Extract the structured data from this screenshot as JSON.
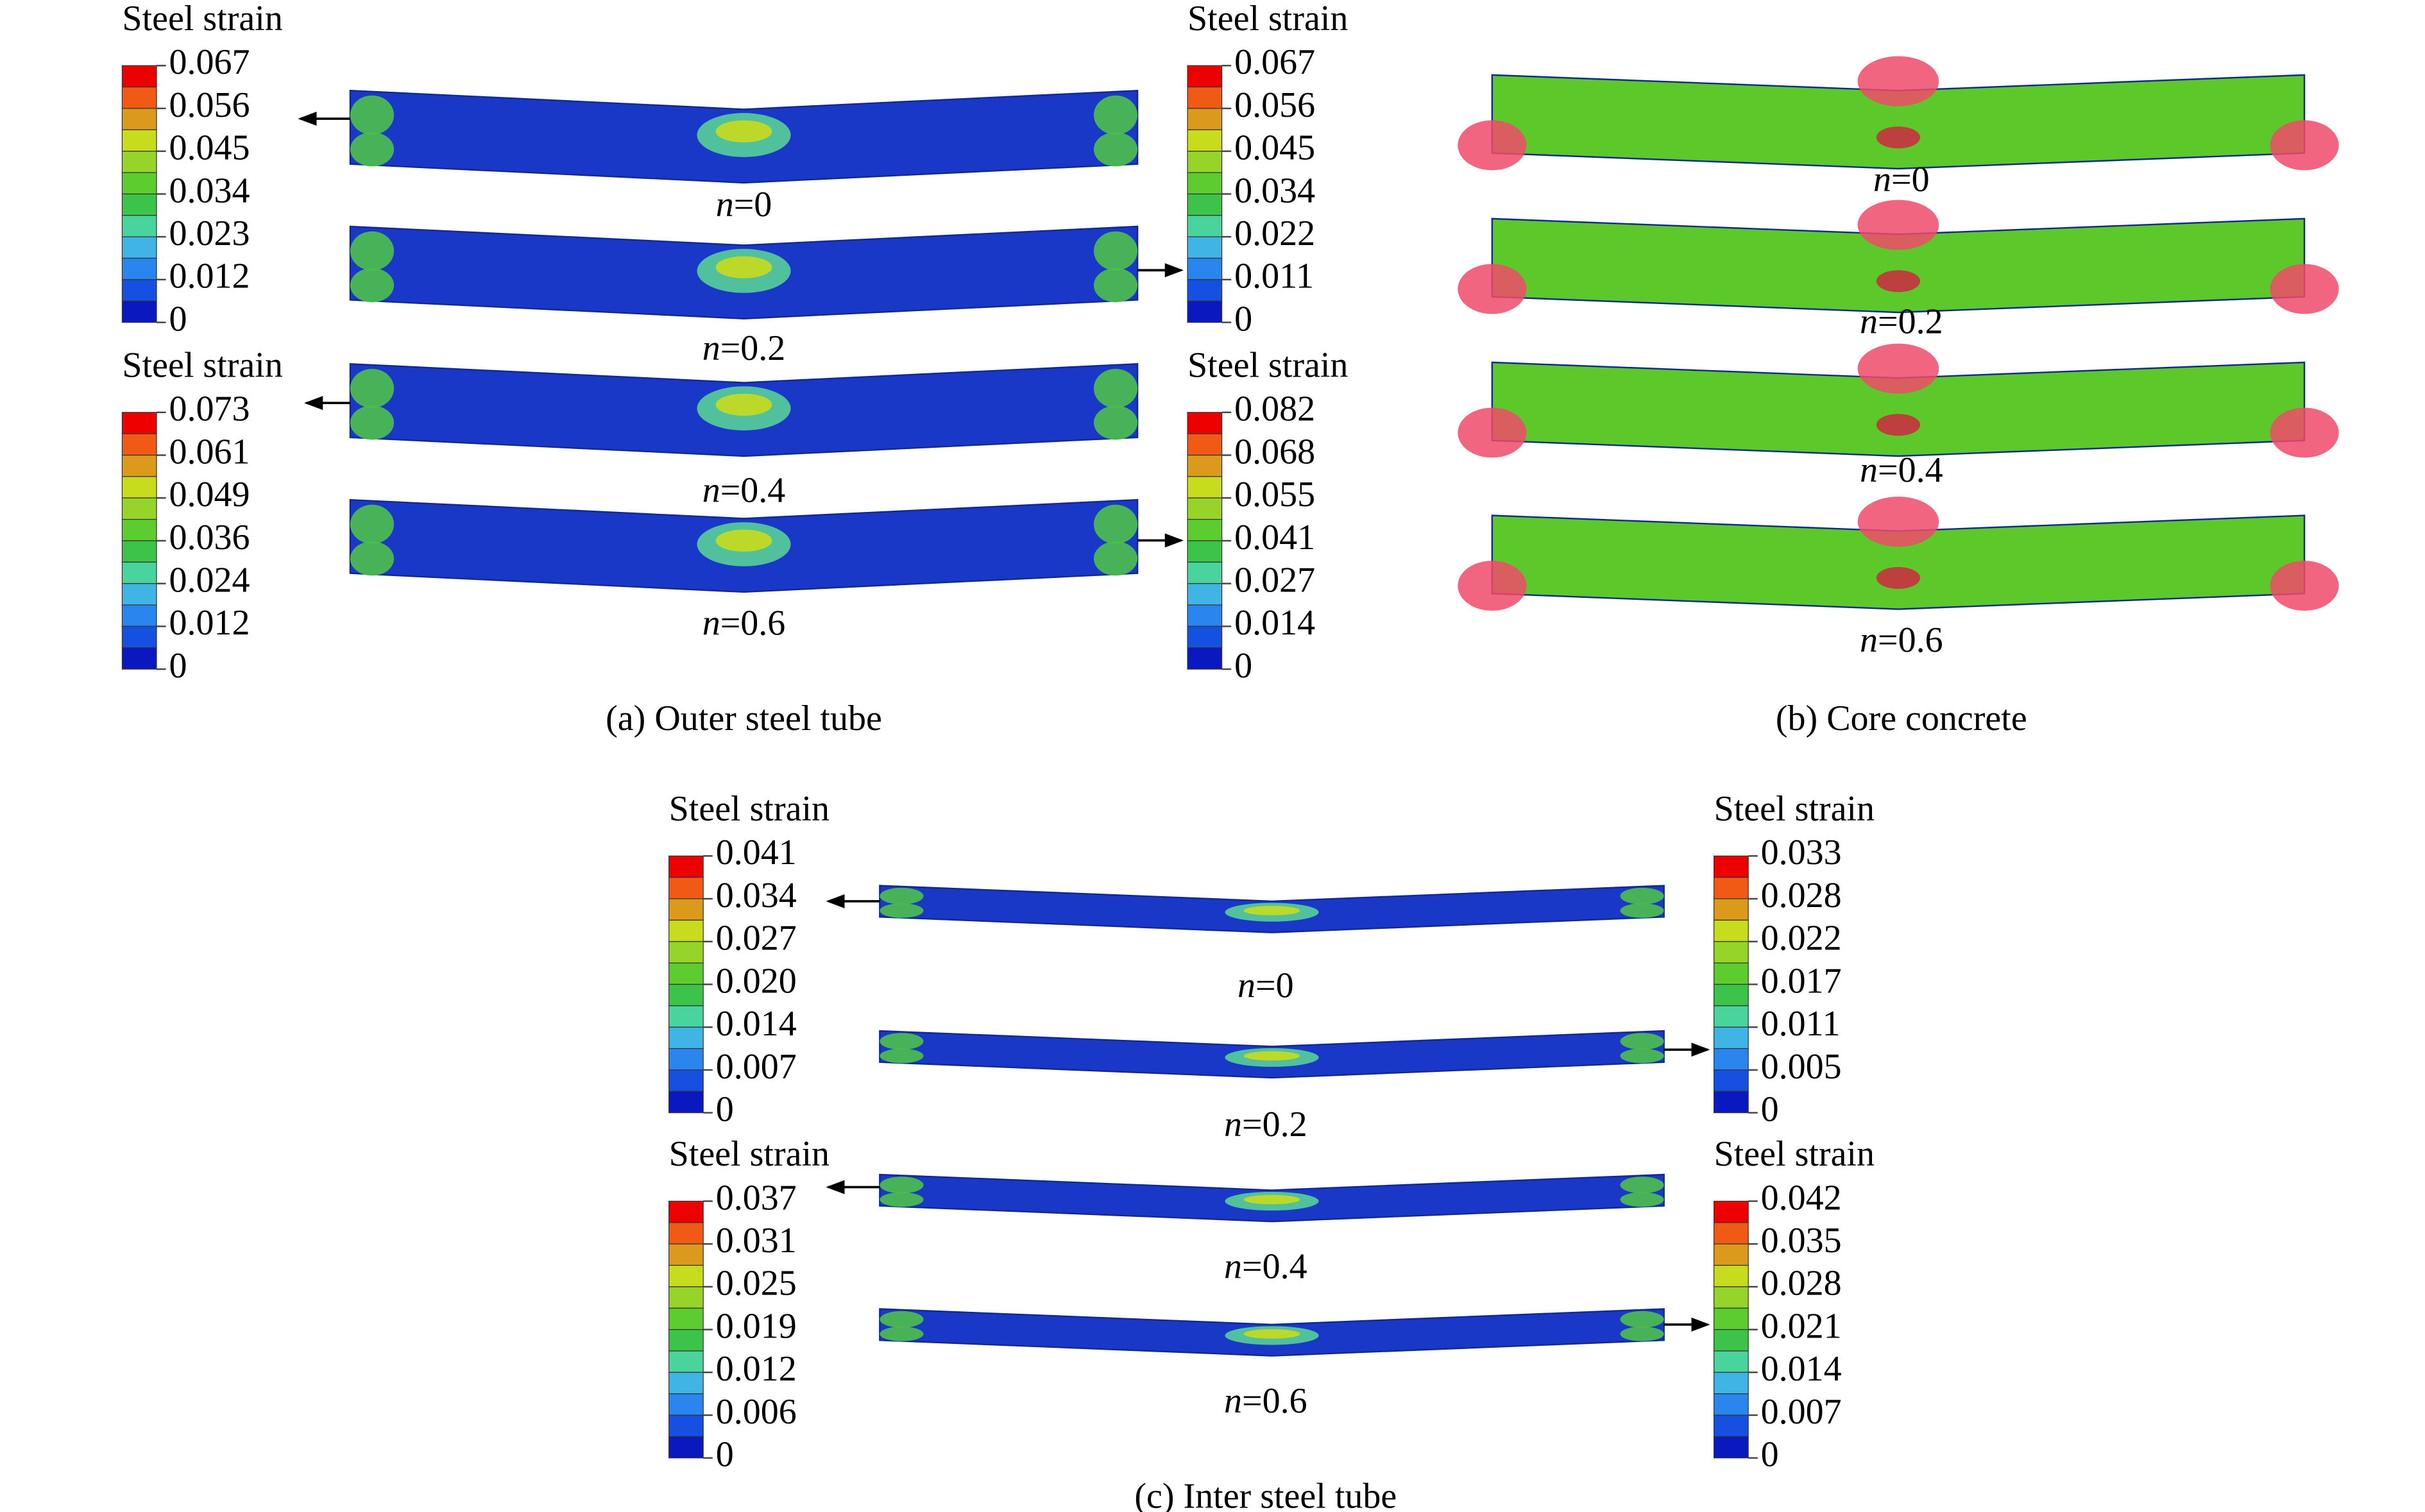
{
  "panels": [
    {
      "caption": "(a) Outer steel tube",
      "legends": [
        {
          "title": "Steel strain",
          "labels": [
            "0.067",
            "0.056",
            "0.045",
            "0.034",
            "0.023",
            "0.012",
            "0"
          ]
        },
        {
          "title": "Steel strain",
          "labels": [
            "0.067",
            "0.056",
            "0.045",
            "0.034",
            "0.022",
            "0.011",
            "0"
          ]
        },
        {
          "title": "Steel strain",
          "labels": [
            "0.073",
            "0.061",
            "0.049",
            "0.036",
            "0.024",
            "0.012",
            "0"
          ]
        },
        {
          "title": "Steel strain",
          "labels": [
            "0.082",
            "0.068",
            "0.055",
            "0.041",
            "0.027",
            "0.014",
            "0"
          ]
        }
      ],
      "beams": [
        {
          "var": "n",
          "rest": "=0"
        },
        {
          "var": "n",
          "rest": "=0.2"
        },
        {
          "var": "n",
          "rest": "=0.4"
        },
        {
          "var": "n",
          "rest": "=0.6"
        }
      ]
    },
    {
      "caption": "(b) Core concrete",
      "legends": [],
      "beams": [
        {
          "var": "n",
          "rest": "=0"
        },
        {
          "var": "n",
          "rest": "=0.2"
        },
        {
          "var": "n",
          "rest": "=0.4"
        },
        {
          "var": "n",
          "rest": "=0.6"
        }
      ]
    },
    {
      "caption": "(c) Inter steel tube",
      "legends": [
        {
          "title": "Steel strain",
          "labels": [
            "0.041",
            "0.034",
            "0.027",
            "0.020",
            "0.014",
            "0.007",
            "0"
          ]
        },
        {
          "title": "Steel strain",
          "labels": [
            "0.033",
            "0.028",
            "0.022",
            "0.017",
            "0.011",
            "0.005",
            "0"
          ]
        },
        {
          "title": "Steel strain",
          "labels": [
            "0.037",
            "0.031",
            "0.025",
            "0.019",
            "0.012",
            "0.006",
            "0"
          ]
        },
        {
          "title": "Steel strain",
          "labels": [
            "0.042",
            "0.035",
            "0.028",
            "0.021",
            "0.014",
            "0.007",
            "0"
          ]
        }
      ],
      "beams": [
        {
          "var": "n",
          "rest": "=0"
        },
        {
          "var": "n",
          "rest": "=0.2"
        },
        {
          "var": "n",
          "rest": "=0.4"
        },
        {
          "var": "n",
          "rest": "=0.6"
        }
      ]
    }
  ]
}
